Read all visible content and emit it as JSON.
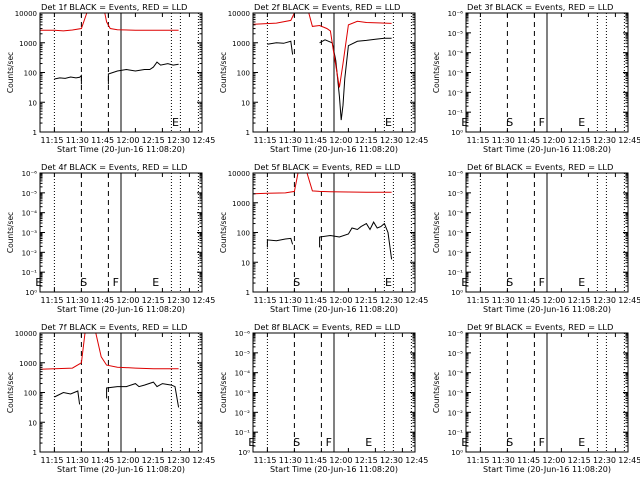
{
  "figure": {
    "time_labels": [
      "11:15",
      "11:30",
      "11:45",
      "12:00",
      "12:15",
      "12:30",
      "12:45"
    ],
    "xlabel": "Start Time (20-Jun-16 11:08:20)",
    "ylabel": "Counts/sec",
    "log_ticks_big": [
      "1",
      "10",
      "100",
      "1000",
      "10000"
    ],
    "log_ticks_small": [
      "10⁰",
      "10⁻¹",
      "10⁻²",
      "10⁻³",
      "10⁻⁴",
      "10⁻⁵",
      "10⁻⁶"
    ],
    "colors": {
      "events": "#000000",
      "lld": "#dd0000",
      "axes": "#000000"
    }
  },
  "chart_data": [
    {
      "type": "line",
      "title": "Det 1f BLACK = Events, RED = LLD",
      "ytype": "big",
      "xlim_min": [
        7,
        97
      ],
      "ylim_log": [
        0,
        4
      ],
      "markers": [
        {
          "t": 82,
          "letter": "E"
        }
      ],
      "series": [
        {
          "name": "Events",
          "segments": [
            [
              [
                15,
                1.78
              ],
              [
                18,
                1.82
              ],
              [
                21,
                1.8
              ],
              [
                24,
                1.85
              ],
              [
                27,
                1.82
              ],
              [
                29,
                1.84
              ],
              [
                30,
                1.9
              ],
              [
                30,
                1.6
              ]
            ],
            [
              [
                45,
                1.6
              ],
              [
                45,
                1.95
              ],
              [
                50,
                2.05
              ],
              [
                55,
                2.1
              ],
              [
                60,
                2.05
              ],
              [
                65,
                2.1
              ],
              [
                68,
                2.1
              ],
              [
                70,
                2.18
              ],
              [
                72,
                2.35
              ],
              [
                74,
                2.25
              ],
              [
                78,
                2.3
              ],
              [
                81,
                2.25
              ],
              [
                84,
                2.28
              ]
            ]
          ]
        },
        {
          "name": "LLD",
          "segments": [
            [
              [
                7,
                3.42
              ],
              [
                15,
                3.42
              ],
              [
                20,
                3.4
              ],
              [
                25,
                3.43
              ],
              [
                30,
                3.48
              ],
              [
                33,
                4.0
              ],
              [
                34,
                4.0
              ]
            ],
            [
              [
                43,
                4.0
              ],
              [
                44,
                3.7
              ],
              [
                46,
                3.48
              ],
              [
                50,
                3.44
              ],
              [
                60,
                3.42
              ],
              [
                70,
                3.42
              ],
              [
                84,
                3.42
              ]
            ]
          ]
        }
      ]
    },
    {
      "type": "line",
      "title": "Det 2f BLACK = Events, RED = LLD",
      "ytype": "big",
      "xlim_min": [
        7,
        97
      ],
      "ylim_log": [
        0,
        4
      ],
      "markers": [
        {
          "t": 82,
          "letter": "E"
        }
      ],
      "series": [
        {
          "name": "Events",
          "segments": [
            [
              [
                15,
                2.95
              ],
              [
                20,
                3.0
              ],
              [
                24,
                2.98
              ],
              [
                28,
                3.05
              ],
              [
                29,
                2.6
              ]
            ],
            [
              [
                44,
                3.0
              ],
              [
                47,
                3.1
              ],
              [
                51,
                3.0
              ],
              [
                53,
                2.4
              ],
              [
                55,
                1.2
              ],
              [
                56,
                0.4
              ],
              [
                57,
                0.9
              ],
              [
                58,
                1.8
              ],
              [
                60,
                2.9
              ],
              [
                65,
                3.05
              ],
              [
                70,
                3.08
              ],
              [
                75,
                3.12
              ],
              [
                80,
                3.15
              ],
              [
                84,
                3.15
              ]
            ]
          ]
        },
        {
          "name": "LLD",
          "segments": [
            [
              [
                7,
                3.62
              ],
              [
                20,
                3.66
              ],
              [
                28,
                3.75
              ],
              [
                30,
                4.0
              ],
              [
                38,
                4.0
              ],
              [
                40,
                3.55
              ],
              [
                44,
                3.58
              ],
              [
                48,
                3.48
              ],
              [
                50,
                3.4
              ],
              [
                52,
                2.6
              ],
              [
                55,
                1.5
              ],
              [
                57,
                2.3
              ],
              [
                60,
                3.6
              ],
              [
                65,
                3.72
              ],
              [
                70,
                3.68
              ],
              [
                84,
                3.65
              ]
            ]
          ]
        }
      ]
    },
    {
      "type": "line",
      "title": "Det 3f BLACK = Events, RED = LLD",
      "ytype": "small",
      "xlim_min": [
        7,
        97
      ],
      "ylim_log": [
        0,
        6
      ],
      "markers": [
        {
          "t": 6,
          "letter": "E"
        },
        {
          "t": 31,
          "letter": "S"
        },
        {
          "t": 49,
          "letter": "F"
        },
        {
          "t": 71,
          "letter": "E"
        }
      ],
      "series": []
    },
    {
      "type": "line",
      "title": "Det 4f BLACK = Events, RED = LLD",
      "ytype": "small",
      "xlim_min": [
        7,
        97
      ],
      "ylim_log": [
        0,
        6
      ],
      "markers": [
        {
          "t": 6,
          "letter": "E"
        },
        {
          "t": 31,
          "letter": "S"
        },
        {
          "t": 49,
          "letter": "F"
        },
        {
          "t": 71,
          "letter": "E"
        }
      ],
      "series": []
    },
    {
      "type": "line",
      "title": "Det 5f BLACK = Events, RED = LLD",
      "ytype": "big",
      "xlim_min": [
        7,
        97
      ],
      "ylim_log": [
        0,
        4
      ],
      "markers": [
        {
          "t": 31,
          "letter": "S"
        },
        {
          "t": 82,
          "letter": "E"
        }
      ],
      "series": [
        {
          "name": "Events",
          "segments": [
            [
              [
                15,
                1.5
              ],
              [
                15,
                1.75
              ],
              [
                20,
                1.72
              ],
              [
                25,
                1.78
              ],
              [
                28,
                1.8
              ],
              [
                29,
                1.6
              ]
            ],
            [
              [
                44,
                1.5
              ],
              [
                44,
                1.85
              ],
              [
                50,
                1.9
              ],
              [
                55,
                1.85
              ],
              [
                60,
                1.95
              ],
              [
                62,
                2.15
              ],
              [
                65,
                2.1
              ],
              [
                67,
                2.2
              ],
              [
                70,
                2.3
              ],
              [
                72,
                2.1
              ],
              [
                74,
                2.35
              ],
              [
                76,
                2.15
              ],
              [
                78,
                2.2
              ],
              [
                80,
                2.3
              ],
              [
                82,
                2.0
              ],
              [
                84,
                1.1
              ]
            ]
          ]
        },
        {
          "name": "LLD",
          "segments": [
            [
              [
                7,
                3.3
              ],
              [
                15,
                3.32
              ],
              [
                25,
                3.33
              ],
              [
                30,
                3.38
              ],
              [
                32,
                4.0
              ],
              [
                37,
                4.0
              ],
              [
                40,
                3.4
              ],
              [
                44,
                3.38
              ],
              [
                50,
                3.37
              ],
              [
                60,
                3.36
              ],
              [
                70,
                3.35
              ],
              [
                84,
                3.35
              ]
            ]
          ]
        }
      ]
    },
    {
      "type": "line",
      "title": "Det 6f BLACK = Events, RED = LLD",
      "ytype": "small",
      "xlim_min": [
        7,
        97
      ],
      "ylim_log": [
        0,
        6
      ],
      "markers": [
        {
          "t": 6,
          "letter": "E"
        },
        {
          "t": 31,
          "letter": "S"
        },
        {
          "t": 49,
          "letter": "F"
        },
        {
          "t": 71,
          "letter": "E"
        }
      ],
      "series": []
    },
    {
      "type": "line",
      "title": "Det 7f BLACK = Events, RED = LLD",
      "ytype": "big",
      "xlim_min": [
        7,
        97
      ],
      "ylim_log": [
        0,
        4
      ],
      "markers": [],
      "series": [
        {
          "name": "Events",
          "segments": [
            [
              [
                15,
                1.85
              ],
              [
                20,
                2.0
              ],
              [
                24,
                1.95
              ],
              [
                28,
                2.05
              ],
              [
                29,
                1.6
              ]
            ],
            [
              [
                44,
                1.8
              ],
              [
                44,
                2.15
              ],
              [
                50,
                2.2
              ],
              [
                55,
                2.2
              ],
              [
                60,
                2.3
              ],
              [
                62,
                2.2
              ],
              [
                65,
                2.25
              ],
              [
                70,
                2.35
              ],
              [
                72,
                2.2
              ],
              [
                75,
                2.3
              ],
              [
                80,
                2.25
              ],
              [
                82,
                2.2
              ],
              [
                84,
                1.5
              ]
            ]
          ]
        },
        {
          "name": "LLD",
          "segments": [
            [
              [
                7,
                2.78
              ],
              [
                15,
                2.8
              ],
              [
                25,
                2.82
              ],
              [
                30,
                3.0
              ],
              [
                32,
                4.0
              ],
              [
                38,
                4.0
              ],
              [
                41,
                3.2
              ],
              [
                44,
                2.92
              ],
              [
                50,
                2.85
              ],
              [
                60,
                2.82
              ],
              [
                70,
                2.8
              ],
              [
                84,
                2.8
              ]
            ]
          ]
        }
      ]
    },
    {
      "type": "line",
      "title": "Det 8f BLACK = Events, RED = LLD",
      "ytype": "small",
      "xlim_min": [
        7,
        97
      ],
      "ylim_log": [
        0,
        6
      ],
      "markers": [
        {
          "t": 6,
          "letter": "E"
        },
        {
          "t": 31,
          "letter": "S"
        },
        {
          "t": 49,
          "letter": "F"
        },
        {
          "t": 71,
          "letter": "E"
        }
      ],
      "series": []
    },
    {
      "type": "line",
      "title": "Det 9f BLACK = Events, RED = LLD",
      "ytype": "small",
      "xlim_min": [
        7,
        97
      ],
      "ylim_log": [
        0,
        6
      ],
      "markers": [
        {
          "t": 6,
          "letter": "E"
        },
        {
          "t": 31,
          "letter": "S"
        },
        {
          "t": 49,
          "letter": "F"
        },
        {
          "t": 71,
          "letter": "E"
        }
      ],
      "series": []
    }
  ]
}
